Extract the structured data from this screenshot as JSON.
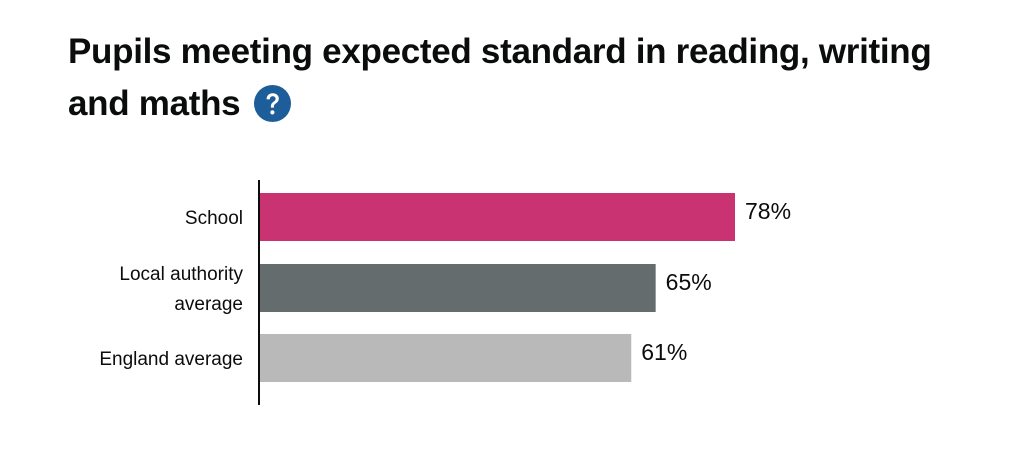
{
  "header": {
    "title": "Pupils meeting expected standard in reading, writing and maths",
    "help_icon": "question-circle-icon"
  },
  "colors": {
    "accent": "#1d70b8",
    "axis": "#0b0c0c"
  },
  "chart_data": {
    "type": "bar",
    "orientation": "horizontal",
    "title": "Pupils meeting expected standard in reading, writing and maths",
    "xlabel": "",
    "ylabel": "",
    "unit": "%",
    "xlim": [
      0,
      100
    ],
    "grid": false,
    "categories": [
      {
        "lines": [
          "School"
        ],
        "value": 78,
        "label": "78%",
        "color": "#ca3372"
      },
      {
        "lines": [
          "Local authority",
          "average"
        ],
        "value": 65,
        "label": "65%",
        "color": "#656c6e"
      },
      {
        "lines": [
          "England average"
        ],
        "value": 61,
        "label": "61%",
        "color": "#b9b9ba"
      }
    ]
  }
}
